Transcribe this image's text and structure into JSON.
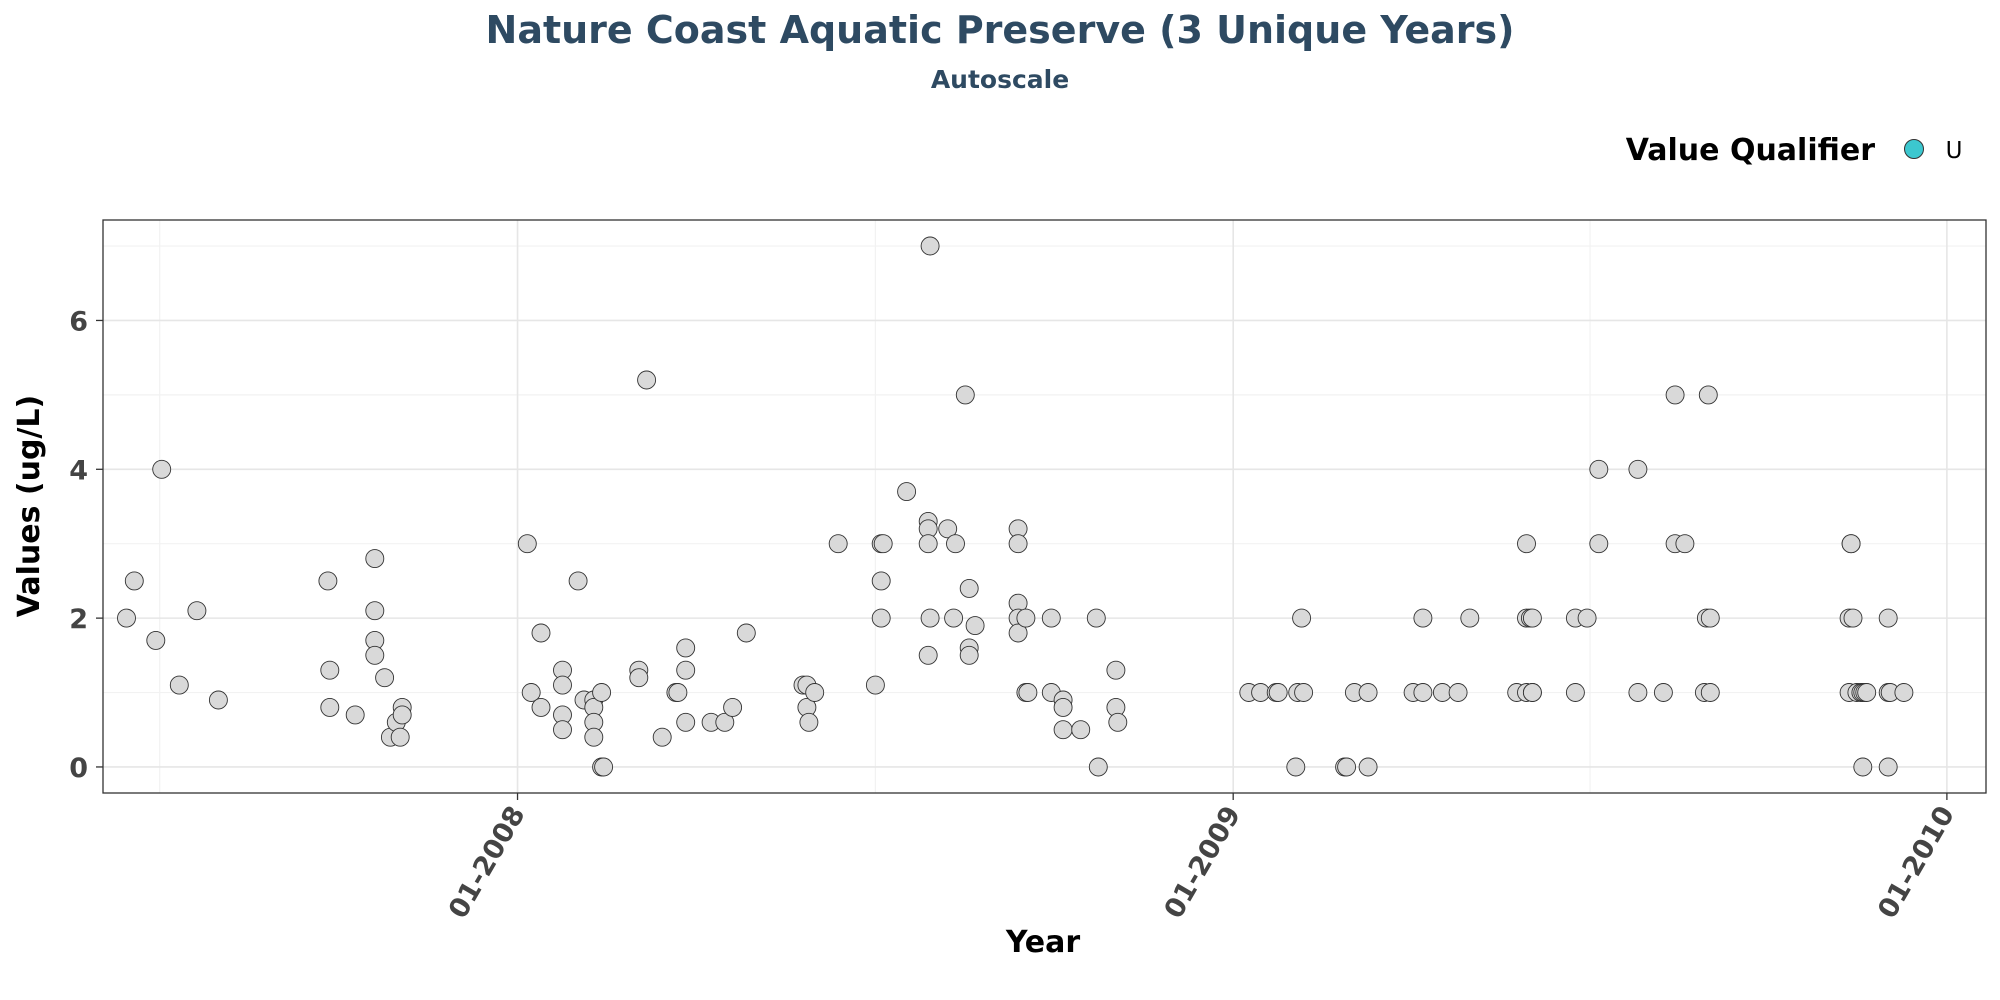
{
  "colors": {
    "title": "#2e4a62",
    "point_fill": "#d9d9d9",
    "point_stroke": "#333333",
    "legend_key": "#3cc7cf",
    "grid_major": "#e6e6e6",
    "grid_minor": "#f2f2f2",
    "panel_border": "#333333",
    "tick_text": "#444444"
  },
  "chart_data": {
    "type": "scatter",
    "title": "Nature Coast Aquatic Preserve (3 Unique Years)",
    "subtitle": "Autoscale",
    "xlabel": "Year",
    "ylabel": "Values (ug/L)",
    "x_ticks": [
      "01-2008",
      "01-2009",
      "01-2010"
    ],
    "y_ticks": [
      "0",
      "2",
      "4",
      "6"
    ],
    "xlim": [
      "2007-06-03",
      "2010-01-21"
    ],
    "ylim": [
      -0.35,
      7.35
    ],
    "grid": true,
    "legend": {
      "title": "Value Qualifier",
      "entries": [
        "U"
      ],
      "position": "top-right"
    },
    "points": [
      {
        "x": "2007-06-15",
        "y": 2.0
      },
      {
        "x": "2007-06-19",
        "y": 2.5
      },
      {
        "x": "2007-06-30",
        "y": 1.7
      },
      {
        "x": "2007-07-03",
        "y": 4.0
      },
      {
        "x": "2007-07-12",
        "y": 1.1
      },
      {
        "x": "2007-07-21",
        "y": 2.1
      },
      {
        "x": "2007-08-01",
        "y": 0.9
      },
      {
        "x": "2007-09-26",
        "y": 2.5
      },
      {
        "x": "2007-09-27",
        "y": 1.3
      },
      {
        "x": "2007-09-27",
        "y": 0.8
      },
      {
        "x": "2007-10-10",
        "y": 0.7
      },
      {
        "x": "2007-10-20",
        "y": 2.8
      },
      {
        "x": "2007-10-20",
        "y": 2.1
      },
      {
        "x": "2007-10-20",
        "y": 1.7
      },
      {
        "x": "2007-10-20",
        "y": 1.5
      },
      {
        "x": "2007-10-25",
        "y": 1.2
      },
      {
        "x": "2007-10-28",
        "y": 0.4
      },
      {
        "x": "2007-10-31",
        "y": 0.6
      },
      {
        "x": "2007-11-02",
        "y": 0.4
      },
      {
        "x": "2007-11-03",
        "y": 0.8
      },
      {
        "x": "2007-11-03",
        "y": 0.7
      },
      {
        "x": "2008-01-06",
        "y": 3.0
      },
      {
        "x": "2008-01-08",
        "y": 1.0
      },
      {
        "x": "2008-01-13",
        "y": 1.8
      },
      {
        "x": "2008-01-13",
        "y": 0.8
      },
      {
        "x": "2008-01-24",
        "y": 1.3
      },
      {
        "x": "2008-01-24",
        "y": 1.1
      },
      {
        "x": "2008-01-24",
        "y": 0.7
      },
      {
        "x": "2008-01-24",
        "y": 0.5
      },
      {
        "x": "2008-02-01",
        "y": 2.5
      },
      {
        "x": "2008-02-04",
        "y": 0.9
      },
      {
        "x": "2008-02-09",
        "y": 0.9
      },
      {
        "x": "2008-02-09",
        "y": 0.8
      },
      {
        "x": "2008-02-09",
        "y": 0.6
      },
      {
        "x": "2008-02-09",
        "y": 0.4
      },
      {
        "x": "2008-02-13",
        "y": 1.0
      },
      {
        "x": "2008-02-13",
        "y": 0.0
      },
      {
        "x": "2008-02-14",
        "y": 0.0
      },
      {
        "x": "2008-03-03",
        "y": 1.3
      },
      {
        "x": "2008-03-03",
        "y": 1.2
      },
      {
        "x": "2008-03-07",
        "y": 5.2
      },
      {
        "x": "2008-03-15",
        "y": 0.4
      },
      {
        "x": "2008-03-22",
        "y": 1.0
      },
      {
        "x": "2008-03-23",
        "y": 1.0
      },
      {
        "x": "2008-03-27",
        "y": 1.6
      },
      {
        "x": "2008-03-27",
        "y": 1.3
      },
      {
        "x": "2008-03-27",
        "y": 0.6
      },
      {
        "x": "2008-04-09",
        "y": 0.6
      },
      {
        "x": "2008-04-16",
        "y": 0.6
      },
      {
        "x": "2008-04-20",
        "y": 0.8
      },
      {
        "x": "2008-04-27",
        "y": 1.8
      },
      {
        "x": "2008-05-26",
        "y": 1.1
      },
      {
        "x": "2008-05-28",
        "y": 1.1
      },
      {
        "x": "2008-05-28",
        "y": 0.8
      },
      {
        "x": "2008-05-29",
        "y": 0.6
      },
      {
        "x": "2008-06-01",
        "y": 1.0
      },
      {
        "x": "2008-06-13",
        "y": 3.0
      },
      {
        "x": "2008-07-02",
        "y": 1.1
      },
      {
        "x": "2008-07-05",
        "y": 2.5
      },
      {
        "x": "2008-07-05",
        "y": 2.0
      },
      {
        "x": "2008-07-05",
        "y": 3.0
      },
      {
        "x": "2008-07-06",
        "y": 3.0
      },
      {
        "x": "2008-07-18",
        "y": 3.7
      },
      {
        "x": "2008-07-30",
        "y": 7.0
      },
      {
        "x": "2008-07-29",
        "y": 3.3
      },
      {
        "x": "2008-07-29",
        "y": 3.2
      },
      {
        "x": "2008-07-29",
        "y": 3.0
      },
      {
        "x": "2008-07-30",
        "y": 2.0
      },
      {
        "x": "2008-07-29",
        "y": 1.5
      },
      {
        "x": "2008-08-08",
        "y": 3.2
      },
      {
        "x": "2008-08-11",
        "y": 2.0
      },
      {
        "x": "2008-08-12",
        "y": 3.0
      },
      {
        "x": "2008-08-17",
        "y": 5.0
      },
      {
        "x": "2008-08-19",
        "y": 2.4
      },
      {
        "x": "2008-08-19",
        "y": 1.6
      },
      {
        "x": "2008-08-19",
        "y": 1.5
      },
      {
        "x": "2008-08-22",
        "y": 1.9
      },
      {
        "x": "2008-09-13",
        "y": 3.2
      },
      {
        "x": "2008-09-13",
        "y": 3.0
      },
      {
        "x": "2008-09-13",
        "y": 2.2
      },
      {
        "x": "2008-09-13",
        "y": 2.0
      },
      {
        "x": "2008-09-13",
        "y": 1.8
      },
      {
        "x": "2008-09-17",
        "y": 2.0
      },
      {
        "x": "2008-09-17",
        "y": 1.0
      },
      {
        "x": "2008-09-18",
        "y": 1.0
      },
      {
        "x": "2008-09-30",
        "y": 2.0
      },
      {
        "x": "2008-09-30",
        "y": 1.0
      },
      {
        "x": "2008-10-06",
        "y": 0.9
      },
      {
        "x": "2008-10-06",
        "y": 0.8
      },
      {
        "x": "2008-10-06",
        "y": 0.5
      },
      {
        "x": "2008-10-15",
        "y": 0.5
      },
      {
        "x": "2008-10-23",
        "y": 2.0
      },
      {
        "x": "2008-10-24",
        "y": 0.0
      },
      {
        "x": "2008-11-02",
        "y": 1.3
      },
      {
        "x": "2008-11-02",
        "y": 0.8
      },
      {
        "x": "2008-11-03",
        "y": 0.6
      },
      {
        "x": "2009-01-09",
        "y": 1.0
      },
      {
        "x": "2009-01-15",
        "y": 1.0
      },
      {
        "x": "2009-01-23",
        "y": 1.0
      },
      {
        "x": "2009-01-24",
        "y": 1.0
      },
      {
        "x": "2009-02-02",
        "y": 0.0
      },
      {
        "x": "2009-02-03",
        "y": 1.0
      },
      {
        "x": "2009-02-05",
        "y": 2.0
      },
      {
        "x": "2009-02-06",
        "y": 1.0
      },
      {
        "x": "2009-02-27",
        "y": 0.0
      },
      {
        "x": "2009-02-28",
        "y": 0.0
      },
      {
        "x": "2009-03-04",
        "y": 1.0
      },
      {
        "x": "2009-03-11",
        "y": 1.0
      },
      {
        "x": "2009-03-11",
        "y": 0.0
      },
      {
        "x": "2009-04-03",
        "y": 1.0
      },
      {
        "x": "2009-04-08",
        "y": 2.0
      },
      {
        "x": "2009-04-08",
        "y": 1.0
      },
      {
        "x": "2009-04-18",
        "y": 1.0
      },
      {
        "x": "2009-04-26",
        "y": 1.0
      },
      {
        "x": "2009-05-02",
        "y": 2.0
      },
      {
        "x": "2009-05-26",
        "y": 1.0
      },
      {
        "x": "2009-05-31",
        "y": 3.0
      },
      {
        "x": "2009-05-31",
        "y": 2.0
      },
      {
        "x": "2009-05-31",
        "y": 1.0
      },
      {
        "x": "2009-06-02",
        "y": 2.0
      },
      {
        "x": "2009-06-03",
        "y": 1.0
      },
      {
        "x": "2009-06-03",
        "y": 2.0
      },
      {
        "x": "2009-06-03",
        "y": 1.0
      },
      {
        "x": "2009-06-25",
        "y": 2.0
      },
      {
        "x": "2009-06-25",
        "y": 1.0
      },
      {
        "x": "2009-07-01",
        "y": 2.0
      },
      {
        "x": "2009-07-07",
        "y": 4.0
      },
      {
        "x": "2009-07-07",
        "y": 3.0
      },
      {
        "x": "2009-07-27",
        "y": 4.0
      },
      {
        "x": "2009-07-27",
        "y": 1.0
      },
      {
        "x": "2009-08-09",
        "y": 1.0
      },
      {
        "x": "2009-08-15",
        "y": 5.0
      },
      {
        "x": "2009-08-15",
        "y": 3.0
      },
      {
        "x": "2009-08-20",
        "y": 3.0
      },
      {
        "x": "2009-08-30",
        "y": 1.0
      },
      {
        "x": "2009-08-31",
        "y": 2.0
      },
      {
        "x": "2009-09-01",
        "y": 5.0
      },
      {
        "x": "2009-09-02",
        "y": 2.0
      },
      {
        "x": "2009-09-02",
        "y": 1.0
      },
      {
        "x": "2009-11-12",
        "y": 2.0
      },
      {
        "x": "2009-11-12",
        "y": 1.0
      },
      {
        "x": "2009-11-13",
        "y": 3.0
      },
      {
        "x": "2009-11-14",
        "y": 2.0
      },
      {
        "x": "2009-11-13",
        "y": 3.0
      },
      {
        "x": "2009-11-16",
        "y": 1.0
      },
      {
        "x": "2009-11-18",
        "y": 1.0
      },
      {
        "x": "2009-11-19",
        "y": 0.0
      },
      {
        "x": "2009-11-19",
        "y": 1.0
      },
      {
        "x": "2009-11-20",
        "y": 1.0
      },
      {
        "x": "2009-11-21",
        "y": 1.0
      },
      {
        "x": "2009-12-02",
        "y": 2.0
      },
      {
        "x": "2009-12-02",
        "y": 0.0
      },
      {
        "x": "2009-12-02",
        "y": 1.0
      },
      {
        "x": "2009-12-03",
        "y": 1.0
      },
      {
        "x": "2009-12-10",
        "y": 1.0
      }
    ]
  }
}
